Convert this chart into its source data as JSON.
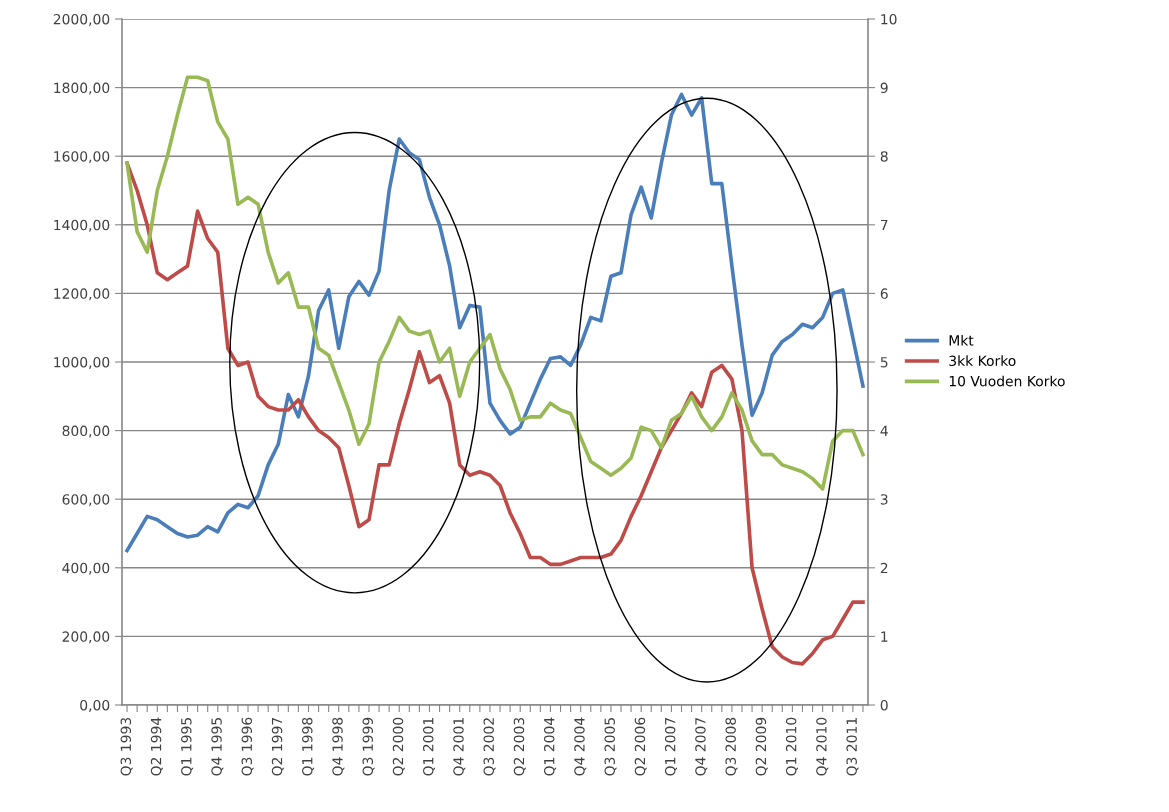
{
  "chart_data": {
    "type": "line",
    "categories": [
      "Q3 1993",
      null,
      null,
      "Q2 1994",
      null,
      null,
      "Q1 1995",
      null,
      null,
      "Q4 1995",
      null,
      null,
      "Q3 1996",
      null,
      null,
      "Q2 1997",
      null,
      null,
      "Q1 1998",
      null,
      null,
      "Q4 1998",
      null,
      null,
      "Q3 1999",
      null,
      null,
      "Q2 2000",
      null,
      null,
      "Q1 2001",
      null,
      null,
      "Q4 2001",
      null,
      null,
      "Q3 2002",
      null,
      null,
      "Q2 2003",
      null,
      null,
      "Q1 2004",
      null,
      null,
      "Q4 2004",
      null,
      null,
      "Q3 2005",
      null,
      null,
      "Q2 2006",
      null,
      null,
      "Q1 2007",
      null,
      null,
      "Q4 2007",
      null,
      null,
      "Q3 2008",
      null,
      null,
      "Q2 2009",
      null,
      null,
      "Q1 2010",
      null,
      null,
      "Q4 2010",
      null,
      null,
      "Q3 2011",
      null
    ],
    "series": [
      {
        "name": "Mkt",
        "color": "#4a7ebb",
        "values": [
          450,
          500,
          550,
          540,
          520,
          500,
          490,
          495,
          520,
          505,
          560,
          585,
          575,
          610,
          700,
          760,
          905,
          840,
          960,
          1150,
          1210,
          1040,
          1190,
          1235,
          1195,
          1265,
          1500,
          1650,
          1610,
          1590,
          1480,
          1400,
          1280,
          1100,
          1165,
          1160,
          880,
          830,
          790,
          810,
          880,
          950,
          1010,
          1015,
          990,
          1050,
          1130,
          1120,
          1250,
          1260,
          1430,
          1510,
          1420,
          1580,
          1720,
          1780,
          1720,
          1770,
          1520,
          1520,
          1280,
          1050,
          845,
          910,
          1020,
          1060,
          1080,
          1110,
          1100,
          1130,
          1200,
          1210,
          1070,
          930
        ]
      },
      {
        "name": "3kk Korko",
        "color": "#be4b48",
        "axis": "y2",
        "values": [
          7.9,
          7.5,
          7.0,
          6.3,
          6.2,
          6.3,
          6.4,
          7.2,
          6.8,
          6.6,
          5.2,
          4.95,
          5.0,
          4.5,
          4.35,
          4.3,
          4.3,
          4.45,
          4.2,
          4.0,
          3.9,
          3.75,
          3.2,
          2.6,
          2.7,
          3.5,
          3.5,
          4.1,
          4.6,
          5.15,
          4.7,
          4.8,
          4.4,
          3.5,
          3.35,
          3.4,
          3.35,
          3.2,
          2.8,
          2.5,
          2.15,
          2.15,
          2.05,
          2.05,
          2.1,
          2.15,
          2.15,
          2.15,
          2.2,
          2.4,
          2.75,
          3.05,
          3.4,
          3.75,
          4.0,
          4.25,
          4.55,
          4.35,
          4.85,
          4.95,
          4.75,
          4.0,
          2.0,
          1.4,
          0.85,
          0.7,
          0.62,
          0.6,
          0.75,
          0.95,
          1.0,
          1.25,
          1.5,
          1.5
        ]
      },
      {
        "name": "10 Vuoden Korko",
        "color": "#98b954",
        "axis": "y2",
        "values": [
          7.9,
          6.9,
          6.6,
          7.5,
          8.0,
          8.6,
          9.15,
          9.15,
          9.1,
          8.5,
          8.25,
          7.3,
          7.4,
          7.3,
          6.6,
          6.15,
          6.3,
          5.8,
          5.8,
          5.2,
          5.1,
          4.7,
          4.3,
          3.8,
          4.1,
          5.0,
          5.3,
          5.65,
          5.45,
          5.4,
          5.45,
          5.0,
          5.2,
          4.5,
          5.0,
          5.2,
          5.4,
          4.9,
          4.6,
          4.15,
          4.2,
          4.2,
          4.4,
          4.3,
          4.25,
          3.9,
          3.55,
          3.45,
          3.35,
          3.45,
          3.6,
          4.05,
          4.0,
          3.75,
          4.15,
          4.25,
          4.5,
          4.2,
          4.0,
          4.2,
          4.55,
          4.3,
          3.85,
          3.65,
          3.65,
          3.5,
          3.45,
          3.4,
          3.3,
          3.15,
          3.85,
          4.0,
          4.0,
          3.65
        ]
      }
    ],
    "ylim": [
      0,
      2000
    ],
    "yticks": [
      {
        "value": 0,
        "label": "0,00"
      },
      {
        "value": 200,
        "label": "200,00"
      },
      {
        "value": 400,
        "label": "400,00"
      },
      {
        "value": 600,
        "label": "600,00"
      },
      {
        "value": 800,
        "label": "800,00"
      },
      {
        "value": 1000,
        "label": "1000,00"
      },
      {
        "value": 1200,
        "label": "1200,00"
      },
      {
        "value": 1400,
        "label": "1400,00"
      },
      {
        "value": 1600,
        "label": "1600,00"
      },
      {
        "value": 1800,
        "label": "1800,00"
      },
      {
        "value": 2000,
        "label": "2000,00"
      }
    ],
    "y2lim": [
      0,
      10
    ],
    "y2ticks": [
      0,
      1,
      2,
      3,
      4,
      5,
      6,
      7,
      8,
      9,
      10
    ],
    "grid": "y",
    "legend": "right",
    "marker": "none",
    "line_style": "solid"
  }
}
